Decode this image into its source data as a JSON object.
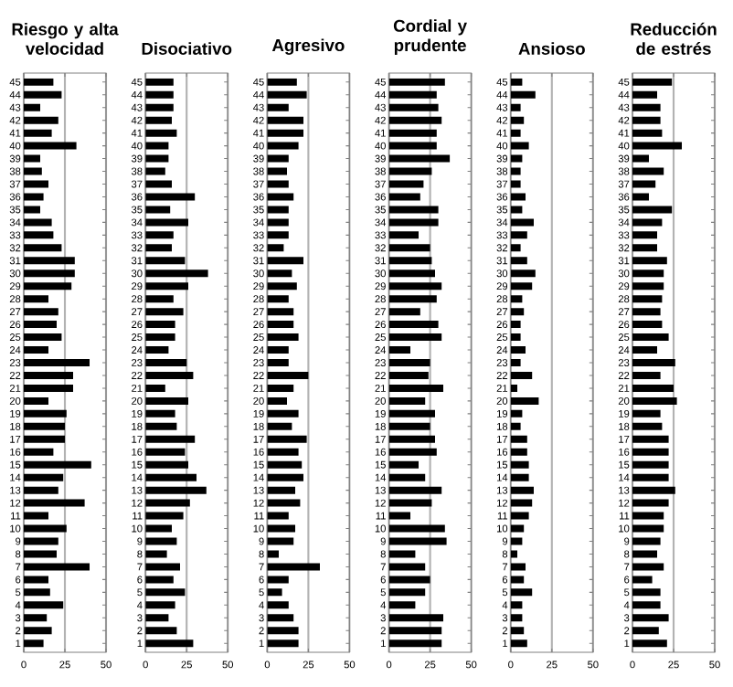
{
  "chart_data": [
    {
      "type": "bar",
      "orientation": "horizontal",
      "title": "Riesgo y alta velocidad",
      "categories": [
        "45",
        "44",
        "43",
        "42",
        "41",
        "40",
        "39",
        "38",
        "37",
        "36",
        "35",
        "34",
        "33",
        "32",
        "31",
        "30",
        "29",
        "28",
        "27",
        "26",
        "25",
        "24",
        "23",
        "22",
        "21",
        "20",
        "19",
        "18",
        "17",
        "16",
        "15",
        "14",
        "13",
        "12",
        "11",
        "10",
        "9",
        "8",
        "7",
        "6",
        "5",
        "4",
        "3",
        "2",
        "1"
      ],
      "values": [
        18,
        23,
        10,
        21,
        17,
        32,
        10,
        11,
        15,
        12,
        10,
        17,
        18,
        23,
        31,
        31,
        29,
        15,
        21,
        20,
        23,
        15,
        40,
        30,
        30,
        15,
        26,
        25,
        25,
        18,
        41,
        24,
        21,
        37,
        15,
        26,
        21,
        20,
        40,
        15,
        16,
        24,
        14,
        17,
        12
      ],
      "color": "#000000",
      "xlim": [
        0,
        50
      ],
      "xticks": [
        0,
        25,
        50
      ],
      "grid": "x"
    },
    {
      "type": "bar",
      "orientation": "horizontal",
      "title": "Disociativo",
      "categories": [
        "45",
        "44",
        "43",
        "42",
        "41",
        "40",
        "39",
        "38",
        "37",
        "36",
        "35",
        "34",
        "33",
        "32",
        "31",
        "30",
        "29",
        "28",
        "27",
        "26",
        "25",
        "24",
        "23",
        "22",
        "21",
        "20",
        "19",
        "18",
        "17",
        "16",
        "15",
        "14",
        "13",
        "12",
        "11",
        "10",
        "9",
        "8",
        "7",
        "6",
        "5",
        "4",
        "3",
        "2",
        "1"
      ],
      "values": [
        17,
        17,
        17,
        16,
        19,
        14,
        14,
        12,
        16,
        30,
        15,
        26,
        17,
        16,
        24,
        38,
        26,
        17,
        23,
        18,
        18,
        14,
        25,
        29,
        12,
        26,
        18,
        19,
        30,
        24,
        26,
        31,
        37,
        27,
        23,
        16,
        19,
        13,
        21,
        17,
        24,
        18,
        14,
        19,
        29
      ],
      "color": "#000000",
      "xlim": [
        0,
        50
      ],
      "xticks": [
        0,
        25,
        50
      ],
      "grid": "x"
    },
    {
      "type": "bar",
      "orientation": "horizontal",
      "title": "Agresivo",
      "categories": [
        "45",
        "44",
        "43",
        "42",
        "41",
        "40",
        "39",
        "38",
        "37",
        "36",
        "35",
        "34",
        "33",
        "32",
        "31",
        "30",
        "29",
        "28",
        "27",
        "26",
        "25",
        "24",
        "23",
        "22",
        "21",
        "20",
        "19",
        "18",
        "17",
        "16",
        "15",
        "14",
        "13",
        "12",
        "11",
        "10",
        "9",
        "8",
        "7",
        "6",
        "5",
        "4",
        "3",
        "2",
        "1"
      ],
      "values": [
        18,
        24,
        13,
        22,
        22,
        19,
        13,
        12,
        13,
        16,
        13,
        13,
        13,
        10,
        22,
        15,
        18,
        13,
        16,
        16,
        19,
        13,
        13,
        25,
        16,
        12,
        19,
        15,
        24,
        19,
        21,
        22,
        17,
        20,
        13,
        17,
        16,
        7,
        32,
        13,
        9,
        13,
        16,
        19,
        19
      ],
      "color": "#000000",
      "xlim": [
        0,
        50
      ],
      "xticks": [
        0,
        25,
        50
      ],
      "grid": "x"
    },
    {
      "type": "bar",
      "orientation": "horizontal",
      "title": "Cordial y prudente",
      "categories": [
        "45",
        "44",
        "43",
        "42",
        "41",
        "40",
        "39",
        "38",
        "37",
        "36",
        "35",
        "34",
        "33",
        "32",
        "31",
        "30",
        "29",
        "28",
        "27",
        "26",
        "25",
        "24",
        "23",
        "22",
        "21",
        "20",
        "19",
        "18",
        "17",
        "16",
        "15",
        "14",
        "13",
        "12",
        "11",
        "10",
        "9",
        "8",
        "7",
        "6",
        "5",
        "4",
        "3",
        "2",
        "1"
      ],
      "values": [
        34,
        29,
        30,
        32,
        29,
        29,
        37,
        26,
        21,
        19,
        30,
        30,
        18,
        25,
        26,
        28,
        32,
        29,
        19,
        30,
        32,
        13,
        25,
        24,
        33,
        22,
        28,
        25,
        28,
        29,
        18,
        22,
        32,
        26,
        13,
        34,
        35,
        16,
        22,
        25,
        22,
        16,
        33,
        32,
        32
      ],
      "color": "#000000",
      "xlim": [
        0,
        50
      ],
      "xticks": [
        0,
        25,
        50
      ],
      "grid": "x"
    },
    {
      "type": "bar",
      "orientation": "horizontal",
      "title": "Ansioso",
      "categories": [
        "45",
        "44",
        "43",
        "42",
        "41",
        "40",
        "39",
        "38",
        "37",
        "36",
        "35",
        "34",
        "33",
        "32",
        "31",
        "30",
        "29",
        "28",
        "27",
        "26",
        "25",
        "24",
        "23",
        "22",
        "21",
        "20",
        "19",
        "18",
        "17",
        "16",
        "15",
        "14",
        "13",
        "12",
        "11",
        "10",
        "9",
        "8",
        "7",
        "6",
        "5",
        "4",
        "3",
        "2",
        "1"
      ],
      "values": [
        7,
        15,
        6,
        8,
        6,
        11,
        7,
        6,
        6,
        9,
        7,
        14,
        10,
        6,
        10,
        15,
        13,
        7,
        8,
        6,
        6,
        9,
        6,
        13,
        4,
        17,
        7,
        6,
        10,
        10,
        11,
        11,
        14,
        13,
        11,
        8,
        7,
        4,
        9,
        8,
        13,
        7,
        7,
        8,
        10
      ],
      "color": "#000000",
      "xlim": [
        0,
        50
      ],
      "xticks": [
        0,
        25,
        50
      ],
      "grid": "x"
    },
    {
      "type": "bar",
      "orientation": "horizontal",
      "title": "Reducción de estrés",
      "categories": [
        "45",
        "44",
        "43",
        "42",
        "41",
        "40",
        "39",
        "38",
        "37",
        "36",
        "35",
        "34",
        "33",
        "32",
        "31",
        "30",
        "29",
        "28",
        "27",
        "26",
        "25",
        "24",
        "23",
        "22",
        "21",
        "20",
        "19",
        "18",
        "17",
        "16",
        "15",
        "14",
        "13",
        "12",
        "11",
        "10",
        "9",
        "8",
        "7",
        "6",
        "5",
        "4",
        "3",
        "2",
        "1"
      ],
      "values": [
        24,
        15,
        17,
        17,
        18,
        30,
        10,
        19,
        14,
        10,
        24,
        18,
        15,
        15,
        21,
        19,
        19,
        18,
        17,
        18,
        22,
        15,
        26,
        17,
        25,
        27,
        17,
        18,
        22,
        22,
        22,
        22,
        26,
        22,
        19,
        19,
        17,
        15,
        19,
        12,
        17,
        17,
        22,
        16,
        21
      ],
      "color": "#000000",
      "xlim": [
        0,
        50
      ],
      "xticks": [
        0,
        25,
        50
      ],
      "grid": "x"
    }
  ]
}
